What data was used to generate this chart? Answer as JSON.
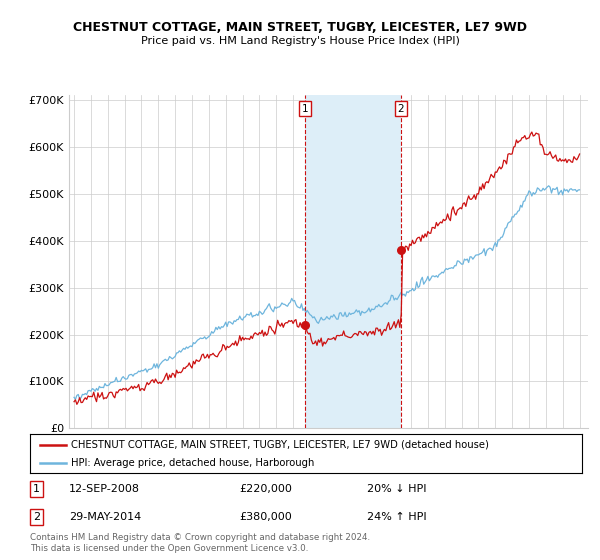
{
  "title": "CHESTNUT COTTAGE, MAIN STREET, TUGBY, LEICESTER, LE7 9WD",
  "subtitle": "Price paid vs. HM Land Registry's House Price Index (HPI)",
  "ylabel_ticks": [
    "£0",
    "£100K",
    "£200K",
    "£300K",
    "£400K",
    "£500K",
    "£600K",
    "£700K"
  ],
  "ytick_values": [
    0,
    100000,
    200000,
    300000,
    400000,
    500000,
    600000,
    700000
  ],
  "ylim": [
    0,
    710000
  ],
  "legend_line1": "CHESTNUT COTTAGE, MAIN STREET, TUGBY, LEICESTER, LE7 9WD (detached house)",
  "legend_line2": "HPI: Average price, detached house, Harborough",
  "transaction1_date": "12-SEP-2008",
  "transaction1_price": "£220,000",
  "transaction1_hpi": "20% ↓ HPI",
  "transaction1_x": 2008.7,
  "transaction1_y": 220000,
  "transaction2_date": "29-MAY-2014",
  "transaction2_price": "£380,000",
  "transaction2_hpi": "24% ↑ HPI",
  "transaction2_x": 2014.4,
  "transaction2_y": 380000,
  "footer": "Contains HM Land Registry data © Crown copyright and database right 2024.\nThis data is licensed under the Open Government Licence v3.0.",
  "hpi_color": "#6eb5dd",
  "price_color": "#cc1111",
  "vline_color": "#cc1111",
  "shade_color": "#ddeef8",
  "xlim_left": 1994.7,
  "xlim_right": 2025.5
}
